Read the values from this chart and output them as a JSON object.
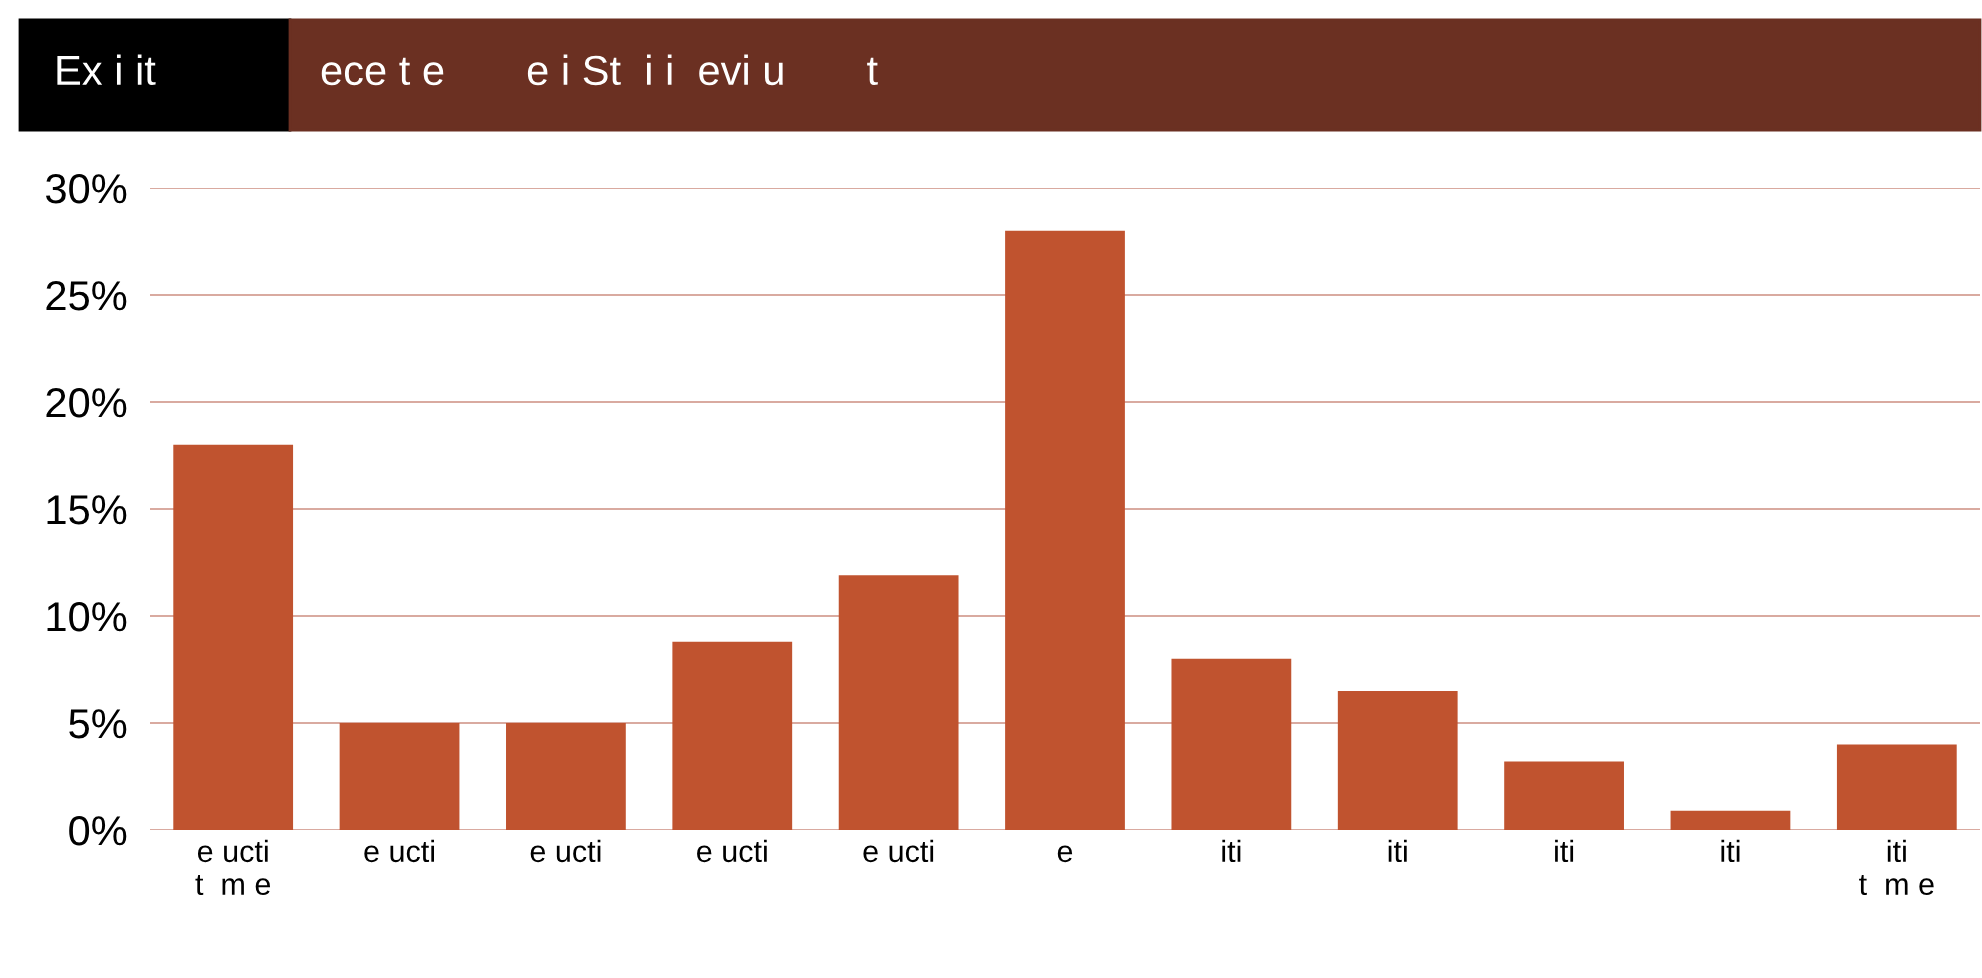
{
  "chart_data": {
    "type": "bar",
    "title": "Ex i it",
    "subtitle": "ece t e       e i St  i i  evi u       t",
    "categories": [
      "e ucti\nt  m e",
      "e ucti",
      "e ucti",
      "e ucti",
      "e ucti",
      "e",
      "iti",
      "iti",
      "iti",
      "iti",
      "iti\nt  m e"
    ],
    "values": [
      18,
      5,
      5,
      8.8,
      11.9,
      28,
      8,
      6.5,
      3.2,
      0.9,
      4
    ],
    "color": "#c0532f",
    "ylim": [
      0,
      30
    ],
    "yticks": [
      {
        "value": 0,
        "label": "0%"
      },
      {
        "value": 5,
        "label": "5%"
      },
      {
        "value": 10,
        "label": "10%"
      },
      {
        "value": 15,
        "label": "15%"
      },
      {
        "value": 20,
        "label": "20%"
      },
      {
        "value": 25,
        "label": "25%"
      },
      {
        "value": 30,
        "label": "30%"
      }
    ],
    "grid": "y",
    "legend": false
  }
}
